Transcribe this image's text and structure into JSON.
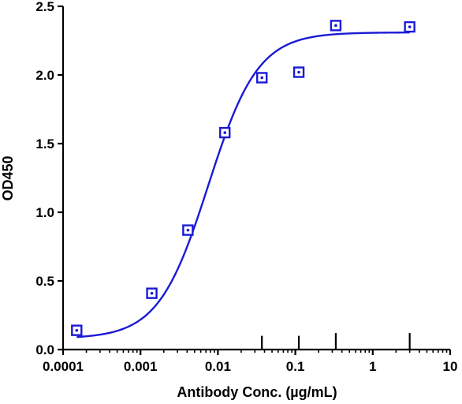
{
  "chart_data": {
    "type": "scatter",
    "title": "",
    "xlabel": "Antibody Conc. (µg/mL)",
    "ylabel": "OD450",
    "x_scale": "log",
    "xlim": [
      0.0001,
      10
    ],
    "ylim": [
      0,
      2.5
    ],
    "x_ticks": [
      "0.0001",
      "0.001",
      "0.01",
      "0.1",
      "1",
      "10"
    ],
    "y_ticks": [
      "0.0",
      "0.5",
      "1.0",
      "1.5",
      "2.0",
      "2.5"
    ],
    "grid": false,
    "legend": "none",
    "series": [
      {
        "marker": "open-square-with-center-dot",
        "color": "#1a1ad6",
        "points": [
          {
            "x": 0.00015,
            "y": 0.14
          },
          {
            "x": 0.0014,
            "y": 0.41
          },
          {
            "x": 0.0041,
            "y": 0.87
          },
          {
            "x": 0.0123,
            "y": 1.58
          },
          {
            "x": 0.037,
            "y": 1.98
          },
          {
            "x": 0.111,
            "y": 2.02
          },
          {
            "x": 0.333,
            "y": 2.36
          },
          {
            "x": 3.0,
            "y": 2.35
          }
        ],
        "error_bars": [
          {
            "x": 0.037,
            "y": 0.1
          },
          {
            "x": 0.111,
            "y": 0.1
          },
          {
            "x": 0.333,
            "y": 0.12
          },
          {
            "x": 3.0,
            "y": 0.12
          }
        ],
        "fit": {
          "model": "four-parameter logistic",
          "bottom": 0.08,
          "top": 2.31,
          "ec50": 0.0075,
          "hill": 1.35
        }
      }
    ]
  }
}
